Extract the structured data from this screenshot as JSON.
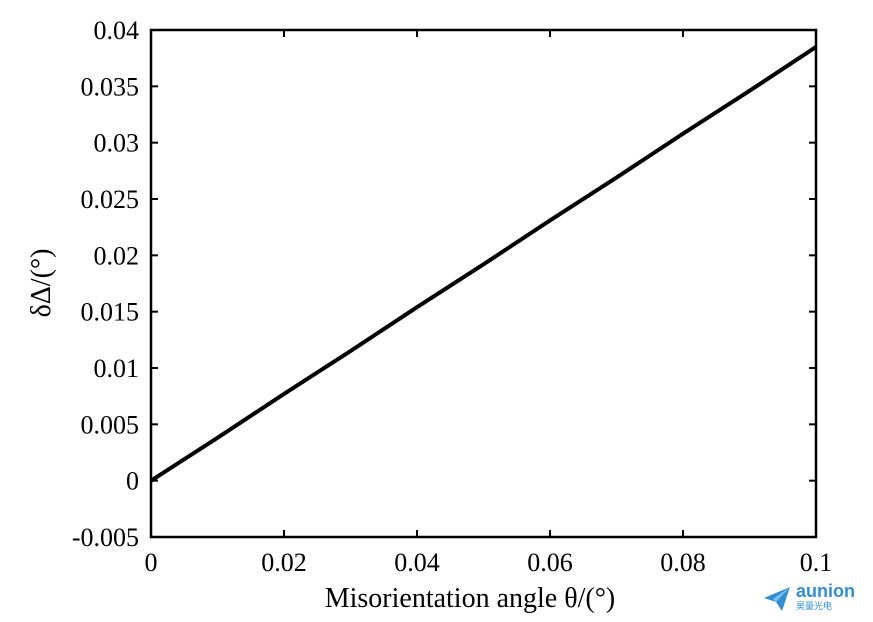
{
  "chart_data": {
    "type": "line",
    "title": "",
    "xlabel": "Misorientation angle θ/(°)",
    "ylabel": "δΔ/(°)",
    "xlim": [
      0,
      0.1
    ],
    "ylim": [
      -0.005,
      0.04
    ],
    "xticks": [
      "0",
      "0.02",
      "0.04",
      "0.06",
      "0.08",
      "0.1"
    ],
    "yticks": [
      "-0.005",
      "0",
      "0.005",
      "0.01",
      "0.015",
      "0.02",
      "0.025",
      "0.03",
      "0.035",
      "0.04"
    ],
    "grid": false,
    "series": [
      {
        "x": [
          0,
          0.01,
          0.02,
          0.03,
          0.04,
          0.05,
          0.06,
          0.07,
          0.08,
          0.09,
          0.1
        ],
        "y": [
          0,
          0.0038,
          0.0077,
          0.0115,
          0.0154,
          0.0192,
          0.0231,
          0.0269,
          0.0308,
          0.0346,
          0.0385
        ]
      }
    ]
  },
  "watermark": {
    "text": "aunion",
    "subtext": "昊量光电"
  },
  "colors": {
    "line": "#000000",
    "watermark": "#2f8fd6"
  }
}
